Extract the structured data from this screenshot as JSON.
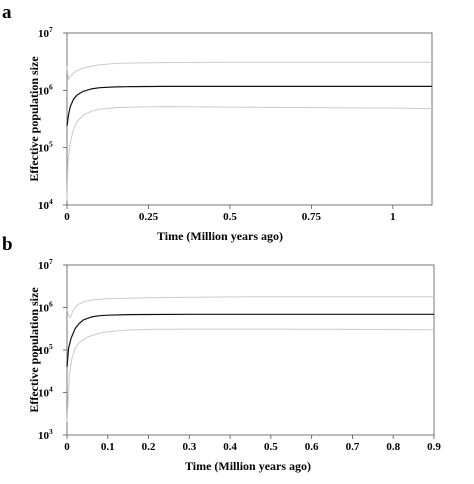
{
  "chart_data": [
    {
      "type": "line",
      "panel_label": "a",
      "xlabel": "Time (Million years ago)",
      "ylabel": "Effective population size",
      "xlim": [
        0,
        1.12
      ],
      "ylim": [
        10000,
        10000000
      ],
      "y_scale": "log",
      "x_ticks": [
        0,
        0.25,
        0.5,
        0.75,
        1
      ],
      "x_tick_labels": [
        "0",
        "0.25",
        "0.5",
        "0.75",
        "1"
      ],
      "y_ticks": [
        {
          "value": 10000,
          "base": "10",
          "exp": "4"
        },
        {
          "value": 100000,
          "base": "10",
          "exp": "5"
        },
        {
          "value": 1000000,
          "base": "10",
          "exp": "6"
        },
        {
          "value": 10000000,
          "base": "10",
          "exp": "7"
        }
      ],
      "grid": false,
      "series": [
        {
          "role": "upper",
          "color": "#c8cad2",
          "x": [
            0,
            0.004,
            0.01,
            0.02,
            0.03,
            0.05,
            0.075,
            0.1,
            0.15,
            0.2,
            0.3,
            0.5,
            0.75,
            1.0,
            1.12
          ],
          "y": [
            2600000,
            1550000,
            1750000,
            2000000,
            2200000,
            2450000,
            2650000,
            2800000,
            2950000,
            3000000,
            3050000,
            3100000,
            3100000,
            3100000,
            3100000
          ]
        },
        {
          "role": "median",
          "color": "#111111",
          "x": [
            0,
            0.005,
            0.01,
            0.02,
            0.03,
            0.05,
            0.075,
            0.1,
            0.15,
            0.2,
            0.3,
            0.5,
            0.75,
            1.0,
            1.12
          ],
          "y": [
            240000,
            380000,
            520000,
            700000,
            820000,
            960000,
            1060000,
            1110000,
            1150000,
            1160000,
            1170000,
            1170000,
            1170000,
            1170000,
            1170000
          ]
        },
        {
          "role": "lower",
          "color": "#c8cad2",
          "x": [
            0,
            0.003,
            0.01,
            0.02,
            0.03,
            0.05,
            0.075,
            0.1,
            0.15,
            0.2,
            0.3,
            0.5,
            0.75,
            1.0,
            1.12
          ],
          "y": [
            12000,
            60000,
            120000,
            210000,
            280000,
            370000,
            430000,
            470000,
            500000,
            510000,
            520000,
            510000,
            500000,
            490000,
            480000
          ]
        }
      ]
    },
    {
      "type": "line",
      "panel_label": "b",
      "xlabel": "Time (Million years ago)",
      "ylabel": "Effective population size",
      "xlim": [
        0,
        0.9
      ],
      "ylim": [
        1000,
        10000000
      ],
      "y_scale": "log",
      "x_ticks": [
        0,
        0.1,
        0.2,
        0.3,
        0.4,
        0.5,
        0.6,
        0.7,
        0.8,
        0.9
      ],
      "x_tick_labels": [
        "0",
        "0.1",
        "0.2",
        "0.3",
        "0.4",
        "0.5",
        "0.6",
        "0.7",
        "0.8",
        "0.9"
      ],
      "y_ticks": [
        {
          "value": 1000,
          "base": "10",
          "exp": "3"
        },
        {
          "value": 10000,
          "base": "10",
          "exp": "4"
        },
        {
          "value": 100000,
          "base": "10",
          "exp": "5"
        },
        {
          "value": 1000000,
          "base": "10",
          "exp": "6"
        },
        {
          "value": 10000000,
          "base": "10",
          "exp": "7"
        }
      ],
      "grid": false,
      "series": [
        {
          "role": "upper",
          "color": "#c8cad2",
          "x": [
            0,
            0.003,
            0.008,
            0.015,
            0.025,
            0.04,
            0.06,
            0.1,
            0.15,
            0.2,
            0.3,
            0.5,
            0.7,
            0.9
          ],
          "y": [
            900000,
            700000,
            580000,
            850000,
            1150000,
            1350000,
            1500000,
            1600000,
            1650000,
            1700000,
            1750000,
            1800000,
            1800000,
            1800000
          ]
        },
        {
          "role": "median",
          "color": "#111111",
          "x": [
            0,
            0.004,
            0.01,
            0.02,
            0.03,
            0.04,
            0.06,
            0.08,
            0.1,
            0.15,
            0.2,
            0.3,
            0.5,
            0.7,
            0.9
          ],
          "y": [
            40000,
            110000,
            190000,
            320000,
            420000,
            510000,
            600000,
            640000,
            660000,
            680000,
            685000,
            690000,
            690000,
            690000,
            690000
          ]
        },
        {
          "role": "lower",
          "color": "#c8cad2",
          "x": [
            0,
            0.002,
            0.006,
            0.012,
            0.02,
            0.03,
            0.05,
            0.08,
            0.1,
            0.15,
            0.2,
            0.3,
            0.5,
            0.7,
            0.9
          ],
          "y": [
            2000,
            5000,
            25000,
            65000,
            110000,
            150000,
            200000,
            250000,
            270000,
            295000,
            305000,
            310000,
            310000,
            305000,
            300000
          ]
        }
      ]
    }
  ]
}
